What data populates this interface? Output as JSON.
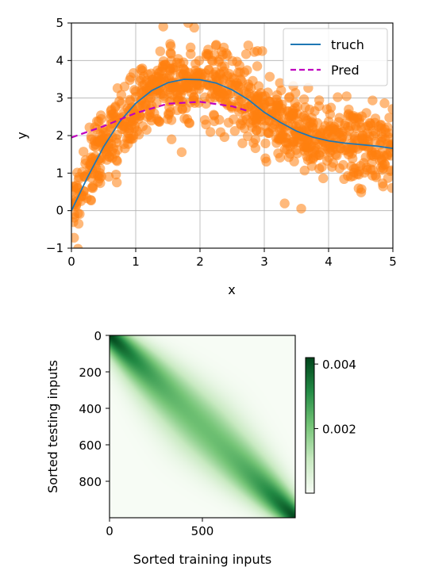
{
  "chart_data": [
    {
      "type": "scatter",
      "xlabel": "x",
      "ylabel": "y",
      "xlim": [
        0,
        5
      ],
      "ylim": [
        -1,
        5
      ],
      "xticks": [
        "0",
        "1",
        "2",
        "3",
        "4",
        "5"
      ],
      "yticks": [
        "−1",
        "0",
        "1",
        "2",
        "3",
        "4",
        "5"
      ],
      "grid": true,
      "legend_placement": "top-right",
      "series": [
        {
          "name": "truch",
          "kind": "line",
          "style": "solid",
          "color": "#1f77b4",
          "x": [
            0,
            0.25,
            0.5,
            0.75,
            1,
            1.25,
            1.5,
            1.75,
            2,
            2.25,
            2.5,
            2.75,
            3,
            3.25,
            3.5,
            3.75,
            4,
            4.25,
            4.5,
            4.75,
            5
          ],
          "y": [
            0,
            0.89,
            1.7,
            2.37,
            2.86,
            3.2,
            3.41,
            3.5,
            3.49,
            3.4,
            3.22,
            2.96,
            2.62,
            2.35,
            2.12,
            1.96,
            1.86,
            1.8,
            1.76,
            1.72,
            1.66
          ]
        },
        {
          "name": "Pred",
          "kind": "line",
          "style": "dashed",
          "color": "#bf00bf",
          "x": [
            0,
            0.5,
            1,
            1.5,
            2,
            2.5,
            2.75
          ],
          "y": [
            1.95,
            2.25,
            2.6,
            2.85,
            2.9,
            2.78,
            2.65
          ]
        },
        {
          "name": "",
          "kind": "points",
          "color": "#ff7f0e",
          "count": 1000,
          "noise_sd": 0.5,
          "domain": [
            0,
            5
          ]
        }
      ]
    },
    {
      "type": "heatmap",
      "xlabel": "Sorted training inputs",
      "ylabel": "Sorted testing inputs",
      "xlim": [
        0,
        1000
      ],
      "ylim": [
        1000,
        0
      ],
      "xticks": [
        "0",
        "500"
      ],
      "yticks": [
        "0",
        "200",
        "400",
        "600",
        "800"
      ],
      "colormap": "Greens",
      "color_low": "#f7fcf5",
      "color_high": "#00441b",
      "colorbar": {
        "range": [
          0,
          0.0042
        ],
        "ticks": [
          "0.002",
          "0.004"
        ]
      },
      "description_values": {
        "diagonal_peak_edges": 0.0042,
        "diagonal_center": 0.0022
      }
    }
  ]
}
